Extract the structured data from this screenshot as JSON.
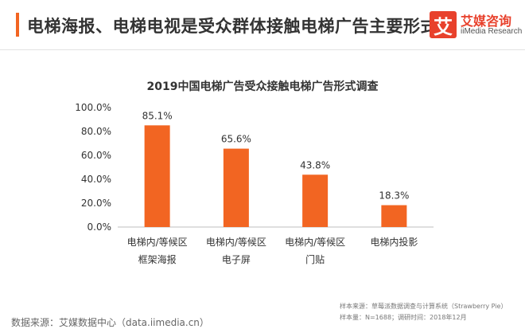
{
  "header": {
    "headline": "电梯海报、电梯电视是受众群体接触电梯广告主要形式"
  },
  "logo": {
    "mark": "艾",
    "name": "艾媒咨询",
    "sub": "iiMedia Research"
  },
  "chart_data": {
    "type": "bar",
    "title": "2019中国电梯广告受众接触电梯广告形式调查",
    "categories": [
      [
        "电梯内/等候区",
        "框架海报"
      ],
      [
        "电梯内/等候区",
        "电子屏"
      ],
      [
        "电梯内/等候区",
        "门贴"
      ],
      [
        "电梯内投影"
      ]
    ],
    "values": [
      85.1,
      65.6,
      43.8,
      18.3
    ],
    "value_labels": [
      "85.1%",
      "65.6%",
      "43.8%",
      "18.3%"
    ],
    "ylim": [
      0,
      100
    ],
    "yticks": [
      0,
      20,
      40,
      60,
      80,
      100
    ],
    "ytick_labels": [
      "0.0%",
      "20.0%",
      "40.0%",
      "60.0%",
      "80.0%",
      "100.0%"
    ],
    "bar_color": "#f26522",
    "grid": false
  },
  "footer": {
    "source_left": "数据来源：艾媒数据中心（data.iimedia.cn）",
    "source_right_line1": "样本来源：草莓派数据调查与计算系统（Strawberry Pie）",
    "source_right_line2": "样本量：N=1688；调研时间：2018年12月"
  }
}
